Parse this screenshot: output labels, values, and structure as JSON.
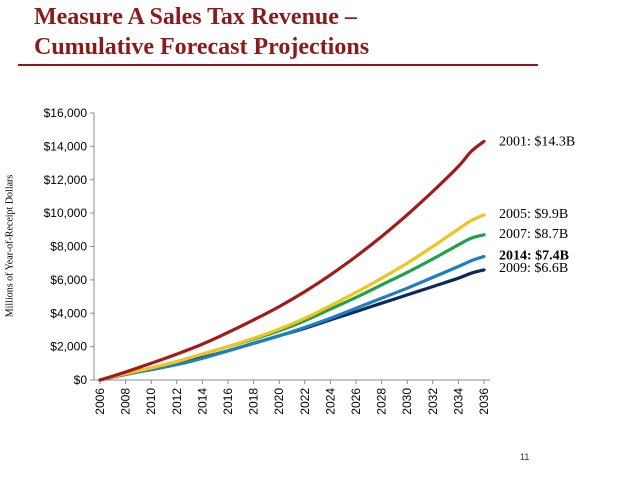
{
  "slide": {
    "title_line1": "Measure A Sales Tax Revenue –",
    "title_line2": "Cumulative Forecast Projections",
    "page_number": "11",
    "title_color": "#8b1a1a"
  },
  "chart_data": {
    "type": "line",
    "title": "Measure A Sales Tax Revenue – Cumulative Forecast Projections",
    "ylabel": "Millions of Year-of-Receipt Dollars",
    "xlabel": "",
    "xlim": [
      2006,
      2036
    ],
    "ylim": [
      0,
      16000
    ],
    "x_ticks": [
      "2006",
      "2008",
      "2010",
      "2012",
      "2014",
      "2016",
      "2018",
      "2020",
      "2022",
      "2024",
      "2026",
      "2028",
      "2030",
      "2032",
      "2034",
      "2036"
    ],
    "y_ticks": [
      {
        "value": 0,
        "label": "$0"
      },
      {
        "value": 2000,
        "label": "$2,000"
      },
      {
        "value": 4000,
        "label": "$4,000"
      },
      {
        "value": 6000,
        "label": "$6,000"
      },
      {
        "value": 8000,
        "label": "$8,000"
      },
      {
        "value": 10000,
        "label": "$10,000"
      },
      {
        "value": 12000,
        "label": "$12,000"
      },
      {
        "value": 14000,
        "label": "$14,000"
      },
      {
        "value": 16000,
        "label": "$16,000"
      }
    ],
    "grid": false,
    "legend": "end-labels",
    "x": [
      2006,
      2008,
      2010,
      2012,
      2014,
      2016,
      2018,
      2020,
      2022,
      2024,
      2026,
      2028,
      2030,
      2032,
      2034,
      2035,
      2036
    ],
    "series": [
      {
        "name": "2001",
        "label": "2001: $14.3B",
        "color": "#a31a1a",
        "bold": false,
        "values": [
          0,
          480,
          1000,
          1550,
          2150,
          2850,
          3600,
          4400,
          5300,
          6300,
          7400,
          8600,
          9900,
          11300,
          12800,
          13700,
          14300
        ]
      },
      {
        "name": "2005",
        "label": "2005: $9.9B",
        "color": "#f2c31b",
        "bold": false,
        "values": [
          0,
          380,
          720,
          1100,
          1550,
          2000,
          2500,
          3050,
          3700,
          4450,
          5250,
          6100,
          7000,
          8000,
          9050,
          9550,
          9900
        ]
      },
      {
        "name": "2007",
        "label": "2007: $8.7B",
        "color": "#1fa24c",
        "bold": false,
        "values": [
          0,
          380,
          720,
          1100,
          1550,
          2000,
          2450,
          2950,
          3550,
          4250,
          4950,
          5700,
          6450,
          7250,
          8100,
          8500,
          8700
        ]
      },
      {
        "name": "2014",
        "label": "2014: $7.4B",
        "color": "#1d7fc0",
        "bold": true,
        "values": [
          0,
          330,
          620,
          920,
          1300,
          1750,
          2200,
          2650,
          3150,
          3700,
          4300,
          4900,
          5500,
          6150,
          6800,
          7150,
          7400
        ]
      },
      {
        "name": "2009",
        "label": "2009: $6.6B",
        "color": "#0d2a5c",
        "bold": false,
        "values": [
          0,
          380,
          700,
          1000,
          1350,
          1750,
          2200,
          2650,
          3100,
          3600,
          4100,
          4600,
          5100,
          5600,
          6100,
          6400,
          6600
        ]
      }
    ],
    "label_y_values": [
      14300,
      9950,
      8750,
      7450,
      6700
    ]
  }
}
